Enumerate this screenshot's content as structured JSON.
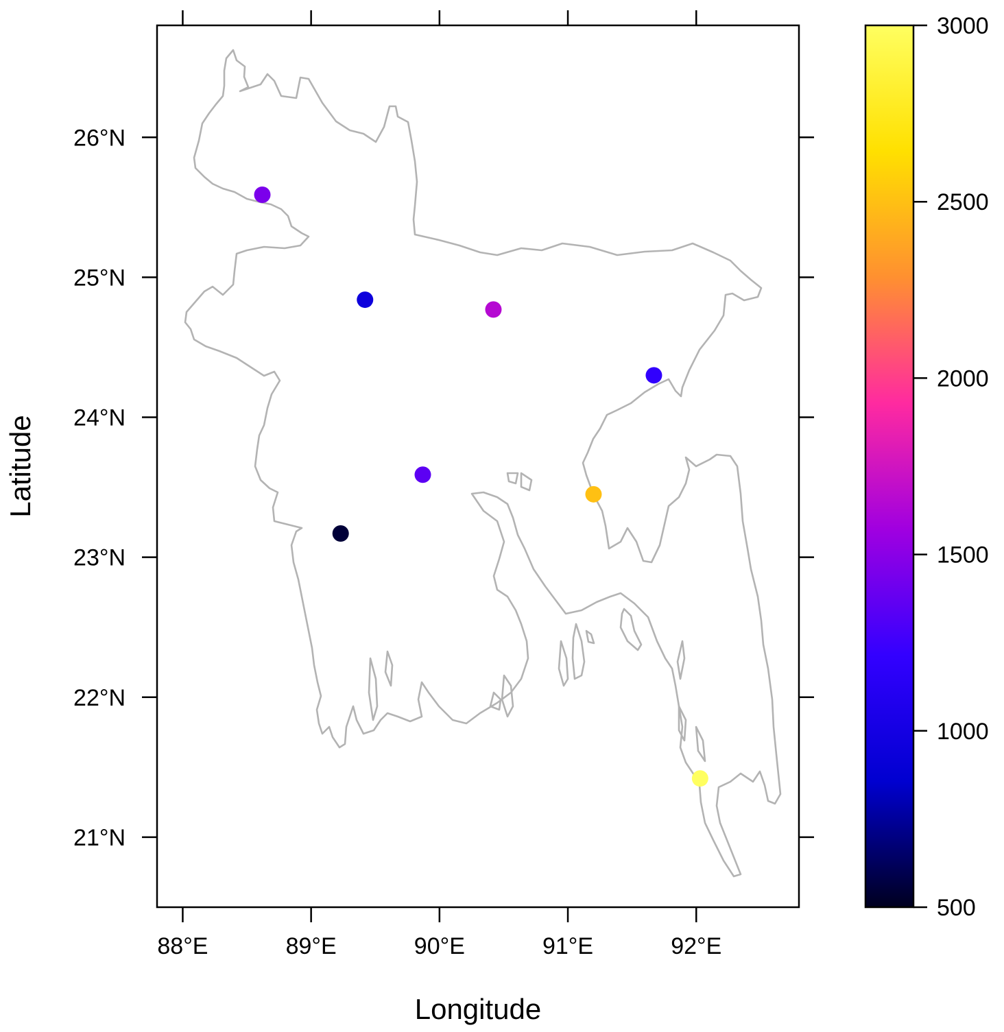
{
  "chart_data": {
    "type": "scatter",
    "xlabel": "Longitude",
    "ylabel": "Latitude",
    "xlim": [
      87.8,
      92.8
    ],
    "ylim": [
      20.5,
      26.8
    ],
    "x_ticks": [
      {
        "value": 88,
        "label": "88°E"
      },
      {
        "value": 89,
        "label": "89°E"
      },
      {
        "value": 90,
        "label": "90°E"
      },
      {
        "value": 91,
        "label": "91°E"
      },
      {
        "value": 92,
        "label": "92°E"
      }
    ],
    "y_ticks": [
      {
        "value": 21,
        "label": "21°N"
      },
      {
        "value": 22,
        "label": "22°N"
      },
      {
        "value": 23,
        "label": "23°N"
      },
      {
        "value": 24,
        "label": "24°N"
      },
      {
        "value": 25,
        "label": "25°N"
      },
      {
        "value": 26,
        "label": "26°N"
      }
    ],
    "points": [
      {
        "lon": 88.62,
        "lat": 25.59,
        "value": 1450
      },
      {
        "lon": 89.42,
        "lat": 24.84,
        "value": 950
      },
      {
        "lon": 90.42,
        "lat": 24.77,
        "value": 1650
      },
      {
        "lon": 91.67,
        "lat": 24.3,
        "value": 1200
      },
      {
        "lon": 89.87,
        "lat": 23.59,
        "value": 1350
      },
      {
        "lon": 89.23,
        "lat": 23.17,
        "value": 550
      },
      {
        "lon": 91.2,
        "lat": 23.45,
        "value": 2500
      },
      {
        "lon": 92.03,
        "lat": 21.42,
        "value": 3000
      }
    ],
    "colorbar": {
      "range": [
        500,
        3000
      ],
      "ticks": [
        {
          "value": 500,
          "label": "500"
        },
        {
          "value": 1000,
          "label": "1000"
        },
        {
          "value": 1500,
          "label": "1500"
        },
        {
          "value": 2000,
          "label": "2000"
        },
        {
          "value": 2500,
          "label": "2500"
        },
        {
          "value": 3000,
          "label": "3000"
        }
      ],
      "stops": [
        "#00001f",
        "#0000d0",
        "#3300ff",
        "#a000e0",
        "#ff2aa0",
        "#ff9030",
        "#ffe000",
        "#ffff60"
      ]
    },
    "boundary_color": "#b3b3b3",
    "grid": false,
    "legend": "colorbar-right"
  }
}
